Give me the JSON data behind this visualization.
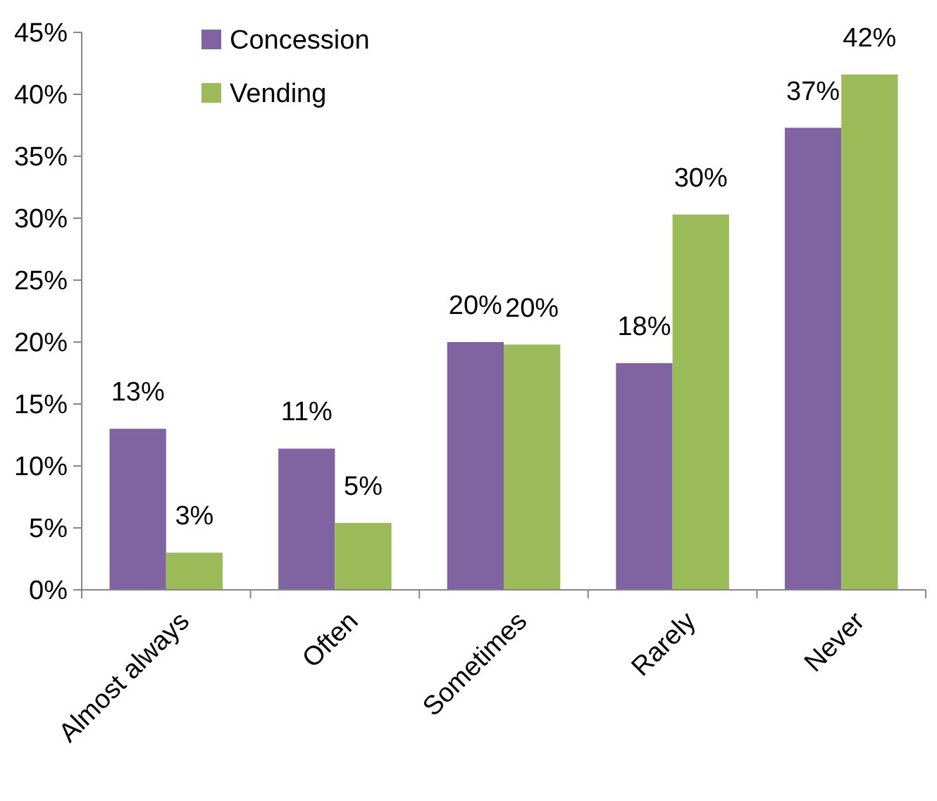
{
  "chart_data": {
    "type": "bar",
    "categories": [
      "Almost always",
      "Often",
      "Sometimes",
      "Rarely",
      "Never"
    ],
    "series": [
      {
        "name": "Concession",
        "color": "#8064a2",
        "values": [
          13,
          11.4,
          20,
          18.3,
          37.3
        ],
        "value_labels": [
          "13%",
          "11%",
          "20%",
          "18%",
          "37%"
        ]
      },
      {
        "name": "Vending",
        "color": "#9bbb59",
        "values": [
          3,
          5.4,
          19.8,
          30.3,
          41.6
        ],
        "value_labels": [
          "3%",
          "5%",
          "20%",
          "30%",
          "42%"
        ]
      }
    ],
    "ylim": [
      0,
      45
    ],
    "yticks": [
      {
        "value": 0,
        "label": "0%"
      },
      {
        "value": 5,
        "label": "5%"
      },
      {
        "value": 10,
        "label": "10%"
      },
      {
        "value": 15,
        "label": "15%"
      },
      {
        "value": 20,
        "label": "20%"
      },
      {
        "value": 25,
        "label": "25%"
      },
      {
        "value": 30,
        "label": "30%"
      },
      {
        "value": 35,
        "label": "35%"
      },
      {
        "value": 40,
        "label": "40%"
      },
      {
        "value": 45,
        "label": "45%"
      }
    ],
    "grid": false,
    "legend": "top left"
  }
}
